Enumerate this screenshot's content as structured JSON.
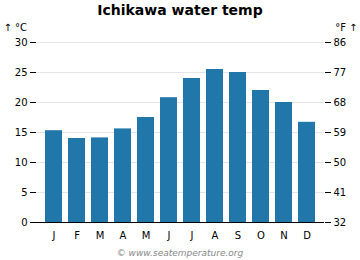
{
  "chart_data": {
    "type": "bar",
    "title": "Ichikawa water temp",
    "categories": [
      "J",
      "F",
      "M",
      "A",
      "M",
      "J",
      "J",
      "A",
      "S",
      "O",
      "N",
      "D"
    ],
    "values": [
      15.3,
      14.0,
      14.1,
      15.6,
      17.5,
      20.8,
      24.0,
      25.5,
      25.0,
      22.0,
      20.0,
      16.7
    ],
    "color": "#2277aa",
    "ylabel": "°C",
    "ylim": [
      0,
      30
    ],
    "yticks": [
      0,
      5,
      10,
      15,
      20,
      25,
      30
    ],
    "y2label": "°F",
    "y2lim": [
      32,
      86
    ],
    "y2ticks": [
      32,
      41,
      50,
      59,
      68,
      77,
      86
    ],
    "grid": true,
    "annotations": [
      "© www.seatemperature.org"
    ]
  }
}
